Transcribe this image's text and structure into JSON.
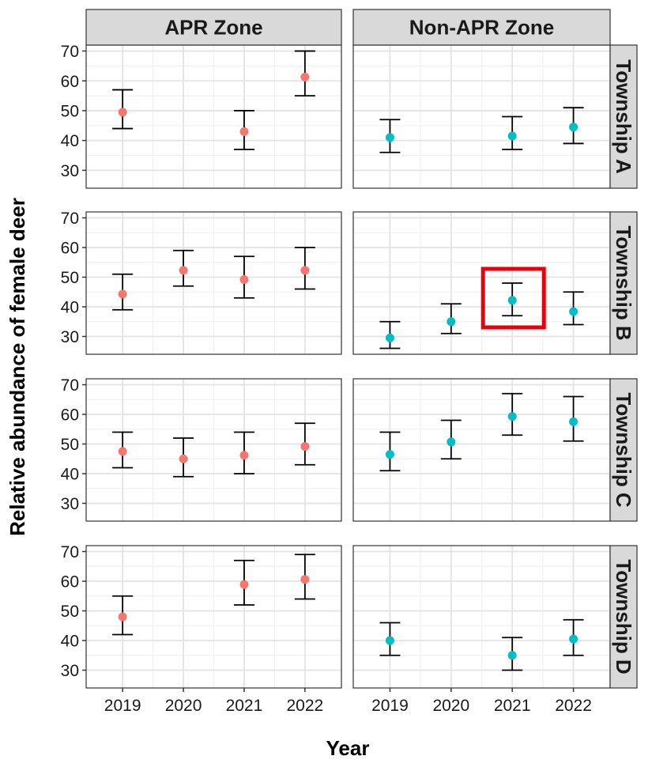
{
  "chart_data": {
    "type": "scatter",
    "xlabel": "Year",
    "ylabel": "Relative abundance of female deer",
    "columns": [
      "APR Zone",
      "Non-APR Zone"
    ],
    "rows": [
      "Township A",
      "Township B",
      "Township C",
      "Township D"
    ],
    "x_ticks": [
      "2019",
      "2020",
      "2021",
      "2022"
    ],
    "y_ticks": [
      30,
      40,
      50,
      60,
      70
    ],
    "ylim": [
      24,
      72
    ],
    "grid": true,
    "legend": "none",
    "colors": {
      "APR Zone": "#F8766D",
      "Non-APR Zone": "#00BFC4",
      "highlight": "#E8000B"
    },
    "highlight": {
      "row": "Township B",
      "column": "Non-APR Zone",
      "x": "2021"
    },
    "panels": [
      {
        "row": "Township A",
        "column": "APR Zone",
        "points": [
          {
            "x": "2019",
            "y": 49.5,
            "lower": 44,
            "upper": 57
          },
          {
            "x": "2021",
            "y": 43,
            "lower": 37,
            "upper": 50
          },
          {
            "x": "2022",
            "y": 61.3,
            "lower": 55,
            "upper": 70
          }
        ]
      },
      {
        "row": "Township A",
        "column": "Non-APR Zone",
        "points": [
          {
            "x": "2019",
            "y": 41,
            "lower": 36,
            "upper": 47
          },
          {
            "x": "2021",
            "y": 41.5,
            "lower": 37,
            "upper": 48
          },
          {
            "x": "2022",
            "y": 44.5,
            "lower": 39,
            "upper": 51
          }
        ]
      },
      {
        "row": "Township B",
        "column": "APR Zone",
        "points": [
          {
            "x": "2019",
            "y": 44.3,
            "lower": 39,
            "upper": 51
          },
          {
            "x": "2020",
            "y": 52.3,
            "lower": 47,
            "upper": 59
          },
          {
            "x": "2021",
            "y": 49.2,
            "lower": 43,
            "upper": 57
          },
          {
            "x": "2022",
            "y": 52.3,
            "lower": 46,
            "upper": 60
          }
        ]
      },
      {
        "row": "Township B",
        "column": "Non-APR Zone",
        "points": [
          {
            "x": "2019",
            "y": 29.5,
            "lower": 26,
            "upper": 35
          },
          {
            "x": "2020",
            "y": 35,
            "lower": 31,
            "upper": 41
          },
          {
            "x": "2021",
            "y": 42.2,
            "lower": 37,
            "upper": 48
          },
          {
            "x": "2022",
            "y": 38.4,
            "lower": 34,
            "upper": 45
          }
        ]
      },
      {
        "row": "Township C",
        "column": "APR Zone",
        "points": [
          {
            "x": "2019",
            "y": 47.5,
            "lower": 42,
            "upper": 54
          },
          {
            "x": "2020",
            "y": 45,
            "lower": 39,
            "upper": 52
          },
          {
            "x": "2021",
            "y": 46.2,
            "lower": 40,
            "upper": 54
          },
          {
            "x": "2022",
            "y": 49.2,
            "lower": 43,
            "upper": 57
          }
        ]
      },
      {
        "row": "Township C",
        "column": "Non-APR Zone",
        "points": [
          {
            "x": "2019",
            "y": 46.5,
            "lower": 41,
            "upper": 54
          },
          {
            "x": "2020",
            "y": 50.7,
            "lower": 45,
            "upper": 58
          },
          {
            "x": "2021",
            "y": 59.3,
            "lower": 53,
            "upper": 67
          },
          {
            "x": "2022",
            "y": 57.5,
            "lower": 51,
            "upper": 66
          }
        ]
      },
      {
        "row": "Township D",
        "column": "APR Zone",
        "points": [
          {
            "x": "2019",
            "y": 48,
            "lower": 42,
            "upper": 55
          },
          {
            "x": "2021",
            "y": 58.9,
            "lower": 52,
            "upper": 67
          },
          {
            "x": "2022",
            "y": 60.6,
            "lower": 54,
            "upper": 69
          }
        ]
      },
      {
        "row": "Township D",
        "column": "Non-APR Zone",
        "points": [
          {
            "x": "2019",
            "y": 40,
            "lower": 35,
            "upper": 46
          },
          {
            "x": "2021",
            "y": 35,
            "lower": 30,
            "upper": 41
          },
          {
            "x": "2022",
            "y": 40.5,
            "lower": 35,
            "upper": 47
          }
        ]
      }
    ]
  }
}
